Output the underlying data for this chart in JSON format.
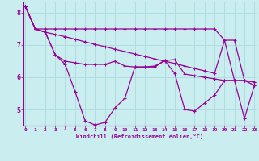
{
  "background_color": "#caeef0",
  "grid_color": "#b0dde0",
  "line_color": "#990099",
  "xlim_min": -0.2,
  "xlim_max": 23.2,
  "ylim_min": 4.5,
  "ylim_max": 8.35,
  "xticks": [
    0,
    1,
    2,
    3,
    4,
    5,
    6,
    7,
    8,
    9,
    10,
    11,
    12,
    13,
    14,
    15,
    16,
    17,
    18,
    19,
    20,
    21,
    22,
    23
  ],
  "yticks": [
    5,
    6,
    7,
    8
  ],
  "xlabel": "Windchill (Refroidissement éolien,°C)",
  "line_flat": [
    8.2,
    7.5,
    7.5,
    7.5,
    7.5,
    7.5,
    7.5,
    7.5,
    7.5,
    7.5,
    7.5,
    7.5,
    7.5,
    7.5,
    7.5,
    7.5,
    7.5,
    7.5,
    7.5,
    7.5,
    7.15,
    7.15,
    5.9,
    5.85
  ],
  "line_decay": [
    8.2,
    7.5,
    7.4,
    7.33,
    7.26,
    7.18,
    7.1,
    7.02,
    6.95,
    6.87,
    6.8,
    6.72,
    6.65,
    6.57,
    6.5,
    6.43,
    6.35,
    6.27,
    6.2,
    6.12,
    7.15,
    5.9,
    5.9,
    5.85
  ],
  "line_mid": [
    8.2,
    7.5,
    7.4,
    6.7,
    6.5,
    6.45,
    6.4,
    6.4,
    6.4,
    6.5,
    6.35,
    6.32,
    6.32,
    6.32,
    6.52,
    6.55,
    6.1,
    6.05,
    6.0,
    5.95,
    5.9,
    5.9,
    5.9,
    5.75
  ],
  "line_zigzag": [
    8.2,
    7.5,
    7.4,
    6.7,
    6.4,
    5.55,
    4.65,
    4.52,
    4.6,
    5.05,
    5.35,
    6.32,
    6.32,
    6.35,
    6.52,
    6.12,
    5.0,
    4.95,
    5.2,
    5.45,
    5.9,
    5.9,
    4.72,
    5.75
  ]
}
